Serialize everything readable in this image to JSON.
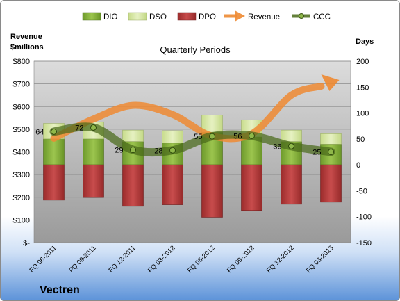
{
  "chart_data": {
    "type": "bar",
    "title": "Quarterly Periods",
    "company": "Vectren",
    "y_left_label_line1": "Revenue",
    "y_left_label_line2": "$millions",
    "y_right_label": "Days",
    "categories": [
      "FQ 06-2011",
      "FQ 09-2011",
      "FQ 12-2011",
      "FQ 03-2012",
      "FQ 06-2012",
      "FQ 09-2012",
      "FQ 12-2012",
      "FQ 03-2013"
    ],
    "left_axis": {
      "min": 0,
      "max": 800,
      "ticks": [
        "$-",
        "$100",
        "$200",
        "$300",
        "$400",
        "$500",
        "$600",
        "$700",
        "$800"
      ]
    },
    "right_axis": {
      "min": -150,
      "max": 200,
      "ticks": [
        "-150",
        "-100",
        "-50",
        "0",
        "50",
        "100",
        "150",
        "200"
      ]
    },
    "series": [
      {
        "name": "DIO",
        "axis": "days",
        "values": [
          50,
          50,
          45,
          42,
          63,
          54,
          45,
          40
        ]
      },
      {
        "name": "DSO",
        "axis": "days",
        "values": [
          30,
          33,
          22,
          24,
          33,
          33,
          22,
          20
        ]
      },
      {
        "name": "DPO",
        "axis": "days",
        "values": [
          -68,
          -63,
          -80,
          -77,
          -101,
          -88,
          -76,
          -72
        ]
      },
      {
        "name": "Revenue",
        "axis": "revenue",
        "values": [
          460,
          545,
          605,
          565,
          470,
          480,
          650,
          705
        ]
      },
      {
        "name": "CCC",
        "axis": "days",
        "values": [
          64,
          72,
          29,
          28,
          55,
          56,
          36,
          25
        ]
      }
    ],
    "data_labels": [
      "64",
      "72",
      "29",
      "28",
      "55",
      "56",
      "36",
      "25"
    ],
    "legend": {
      "position": "top",
      "items": [
        {
          "name": "DIO",
          "color": "#7da33a"
        },
        {
          "name": "DSO",
          "color": "#d7e7a6"
        },
        {
          "name": "DPO",
          "color": "#b23a3a"
        },
        {
          "name": "Revenue",
          "color": "#f0a050"
        },
        {
          "name": "CCC",
          "color": "#4d6b1e"
        }
      ]
    },
    "colors": {
      "dio": "#7da33a",
      "dso": "#d7e7a6",
      "dpo": "#b23a3a",
      "revenue": "#ee8a32",
      "ccc": "#4a6a1a"
    }
  }
}
